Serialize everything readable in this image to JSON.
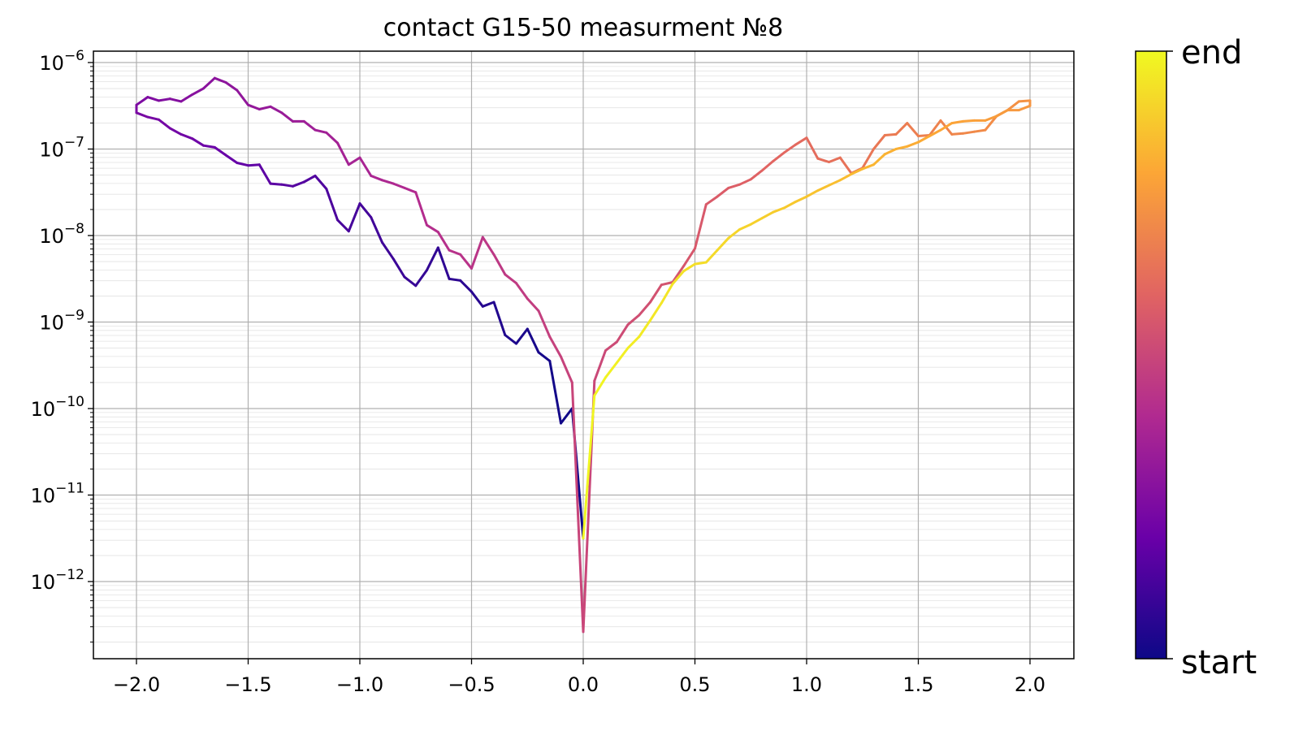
{
  "chart_data": {
    "type": "line",
    "title": "contact G15-50 measurment №8",
    "xlabel": "",
    "ylabel": "",
    "xlim": [
      -2.2,
      2.2
    ],
    "ylim_log10": [
      -13.8,
      -5.85
    ],
    "y_scale": "log",
    "grid": true,
    "x_ticks": [
      {
        "value": -2.0,
        "label": "−2.0"
      },
      {
        "value": -1.5,
        "label": "−1.5"
      },
      {
        "value": -1.0,
        "label": "−1.0"
      },
      {
        "value": -0.5,
        "label": "−0.5"
      },
      {
        "value": 0.0,
        "label": "0.0"
      },
      {
        "value": 0.5,
        "label": "0.5"
      },
      {
        "value": 1.0,
        "label": "1.0"
      },
      {
        "value": 1.5,
        "label": "1.5"
      },
      {
        "value": 2.0,
        "label": "2.0"
      }
    ],
    "y_ticks": [
      {
        "exp": -6,
        "base": "10",
        "sup": "−6"
      },
      {
        "exp": -7,
        "base": "10",
        "sup": "−7"
      },
      {
        "exp": -8,
        "base": "10",
        "sup": "−8"
      },
      {
        "exp": -9,
        "base": "10",
        "sup": "−9"
      },
      {
        "exp": -10,
        "base": "10",
        "sup": "−10"
      },
      {
        "exp": -11,
        "base": "10",
        "sup": "−11"
      },
      {
        "exp": -12,
        "base": "10",
        "sup": "−12"
      }
    ],
    "colormap": [
      "#0d0887",
      "#6a00a8",
      "#b12a90",
      "#e16462",
      "#fca636",
      "#f0f921"
    ],
    "colorbar": {
      "start_label": "start",
      "end_label": "end"
    },
    "series": [
      {
        "values_log10": [
          [
            0.0,
            -11.5
          ],
          [
            -0.05,
            -10.0
          ],
          [
            -0.1,
            -10.17
          ],
          [
            -0.15,
            -9.45
          ],
          [
            -0.2,
            -9.35
          ],
          [
            -0.25,
            -9.08
          ],
          [
            -0.3,
            -9.25
          ],
          [
            -0.35,
            -9.15
          ],
          [
            -0.4,
            -8.77
          ],
          [
            -0.45,
            -8.82
          ],
          [
            -0.5,
            -8.65
          ],
          [
            -0.55,
            -8.52
          ],
          [
            -0.6,
            -8.5
          ],
          [
            -0.65,
            -8.14
          ],
          [
            -0.7,
            -8.4
          ],
          [
            -0.75,
            -8.58
          ],
          [
            -0.8,
            -8.48
          ],
          [
            -0.85,
            -8.27
          ],
          [
            -0.9,
            -8.08
          ],
          [
            -0.95,
            -7.79
          ],
          [
            -1.0,
            -7.63
          ],
          [
            -1.05,
            -7.95
          ],
          [
            -1.1,
            -7.82
          ],
          [
            -1.15,
            -7.46
          ],
          [
            -1.2,
            -7.31
          ],
          [
            -1.25,
            -7.38
          ],
          [
            -1.3,
            -7.43
          ],
          [
            -1.35,
            -7.41
          ],
          [
            -1.4,
            -7.4
          ],
          [
            -1.45,
            -7.18
          ],
          [
            -1.5,
            -7.19
          ],
          [
            -1.55,
            -7.16
          ],
          [
            -1.6,
            -7.07
          ],
          [
            -1.65,
            -6.98
          ],
          [
            -1.7,
            -6.96
          ],
          [
            -1.75,
            -6.88
          ],
          [
            -1.8,
            -6.83
          ],
          [
            -1.85,
            -6.76
          ],
          [
            -1.9,
            -6.66
          ],
          [
            -1.95,
            -6.63
          ],
          [
            -2.0,
            -6.58
          ],
          [
            -2.0,
            -6.49
          ]
        ]
      },
      {
        "values_log10": [
          [
            -2.0,
            -6.49
          ],
          [
            -1.95,
            -6.4
          ],
          [
            -1.9,
            -6.44
          ],
          [
            -1.85,
            -6.42
          ],
          [
            -1.8,
            -6.45
          ],
          [
            -1.75,
            -6.37
          ],
          [
            -1.7,
            -6.3
          ],
          [
            -1.65,
            -6.18
          ],
          [
            -1.6,
            -6.23
          ],
          [
            -1.55,
            -6.32
          ],
          [
            -1.5,
            -6.49
          ],
          [
            -1.45,
            -6.54
          ],
          [
            -1.4,
            -6.51
          ],
          [
            -1.35,
            -6.58
          ],
          [
            -1.3,
            -6.68
          ],
          [
            -1.25,
            -6.68
          ],
          [
            -1.2,
            -6.78
          ],
          [
            -1.15,
            -6.81
          ],
          [
            -1.1,
            -6.93
          ],
          [
            -1.05,
            -7.18
          ],
          [
            -1.0,
            -7.1
          ],
          [
            -0.95,
            -7.31
          ],
          [
            -0.9,
            -7.36
          ],
          [
            -0.85,
            -7.4
          ],
          [
            -0.8,
            -7.45
          ],
          [
            -0.75,
            -7.5
          ],
          [
            -0.7,
            -7.88
          ],
          [
            -0.65,
            -7.96
          ],
          [
            -0.6,
            -8.17
          ],
          [
            -0.55,
            -8.22
          ],
          [
            -0.5,
            -8.38
          ],
          [
            -0.45,
            -8.02
          ],
          [
            -0.4,
            -8.22
          ],
          [
            -0.35,
            -8.45
          ],
          [
            -0.3,
            -8.55
          ],
          [
            -0.25,
            -8.73
          ],
          [
            -0.2,
            -8.87
          ],
          [
            -0.15,
            -9.17
          ],
          [
            -0.1,
            -9.4
          ],
          [
            -0.05,
            -9.7
          ],
          [
            0.0,
            -12.58
          ]
        ]
      },
      {
        "values_log10": [
          [
            0.0,
            -12.58
          ],
          [
            0.05,
            -9.68
          ],
          [
            0.1,
            -9.33
          ],
          [
            0.15,
            -9.23
          ],
          [
            0.2,
            -9.03
          ],
          [
            0.25,
            -8.92
          ],
          [
            0.3,
            -8.77
          ],
          [
            0.35,
            -8.57
          ],
          [
            0.4,
            -8.54
          ],
          [
            0.45,
            -8.35
          ],
          [
            0.5,
            -8.15
          ],
          [
            0.55,
            -7.64
          ],
          [
            0.6,
            -7.55
          ],
          [
            0.65,
            -7.45
          ],
          [
            0.7,
            -7.41
          ],
          [
            0.75,
            -7.35
          ],
          [
            0.8,
            -7.25
          ],
          [
            0.85,
            -7.14
          ],
          [
            0.9,
            -7.04
          ],
          [
            0.95,
            -6.95
          ],
          [
            1.0,
            -6.87
          ],
          [
            1.05,
            -7.11
          ],
          [
            1.1,
            -7.15
          ],
          [
            1.15,
            -7.1
          ],
          [
            1.2,
            -7.28
          ],
          [
            1.25,
            -7.22
          ],
          [
            1.3,
            -7.0
          ],
          [
            1.35,
            -6.84
          ],
          [
            1.4,
            -6.83
          ],
          [
            1.45,
            -6.7
          ],
          [
            1.5,
            -6.85
          ],
          [
            1.55,
            -6.84
          ],
          [
            1.6,
            -6.67
          ],
          [
            1.65,
            -6.83
          ],
          [
            1.7,
            -6.82
          ],
          [
            1.75,
            -6.8
          ],
          [
            1.8,
            -6.78
          ],
          [
            1.85,
            -6.62
          ],
          [
            1.9,
            -6.55
          ],
          [
            1.95,
            -6.45
          ],
          [
            2.0,
            -6.44
          ]
        ]
      },
      {
        "values_log10": [
          [
            2.0,
            -6.44
          ],
          [
            2.0,
            -6.5
          ],
          [
            1.95,
            -6.55
          ],
          [
            1.9,
            -6.55
          ],
          [
            1.85,
            -6.62
          ],
          [
            1.8,
            -6.67
          ],
          [
            1.75,
            -6.67
          ],
          [
            1.7,
            -6.68
          ],
          [
            1.65,
            -6.7
          ],
          [
            1.6,
            -6.78
          ],
          [
            1.55,
            -6.85
          ],
          [
            1.5,
            -6.92
          ],
          [
            1.45,
            -6.97
          ],
          [
            1.4,
            -7.0
          ],
          [
            1.35,
            -7.06
          ],
          [
            1.3,
            -7.18
          ],
          [
            1.25,
            -7.23
          ],
          [
            1.2,
            -7.29
          ],
          [
            1.15,
            -7.36
          ],
          [
            1.1,
            -7.42
          ],
          [
            1.05,
            -7.48
          ],
          [
            1.0,
            -7.55
          ],
          [
            0.95,
            -7.61
          ],
          [
            0.9,
            -7.68
          ],
          [
            0.85,
            -7.73
          ],
          [
            0.8,
            -7.8
          ],
          [
            0.75,
            -7.87
          ],
          [
            0.7,
            -7.93
          ],
          [
            0.65,
            -8.03
          ],
          [
            0.6,
            -8.17
          ],
          [
            0.55,
            -8.31
          ],
          [
            0.5,
            -8.33
          ],
          [
            0.45,
            -8.41
          ],
          [
            0.4,
            -8.56
          ],
          [
            0.35,
            -8.78
          ],
          [
            0.3,
            -8.98
          ],
          [
            0.25,
            -9.17
          ],
          [
            0.2,
            -9.3
          ],
          [
            0.15,
            -9.47
          ],
          [
            0.1,
            -9.64
          ],
          [
            0.05,
            -9.85
          ],
          [
            0.0,
            -11.5
          ]
        ]
      }
    ]
  }
}
